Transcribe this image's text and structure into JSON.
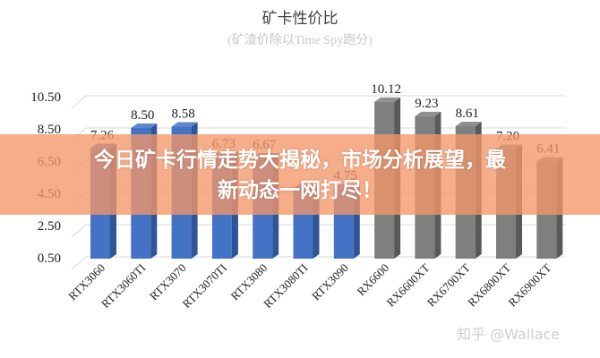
{
  "title": "矿卡性价比",
  "subtitle": "(矿渣价除以Time Spy跑分)",
  "overlay": {
    "headline_line1": "今日矿卡行情走势大揭秘，市场分析展望，最",
    "headline_line2": "新动态一网打尽！",
    "color": "#f4a37c"
  },
  "watermark": "知乎 @Wallace",
  "colors": {
    "nvidia": "#4472c4",
    "amd": "#7f7f7f"
  },
  "chart_data": {
    "type": "bar",
    "title": "矿卡性价比",
    "subtitle": "(矿渣价除以Time Spy跑分)",
    "xlabel": "",
    "ylabel": "",
    "ylim": [
      0.5,
      10.5
    ],
    "yticks": [
      "0.50",
      "2.50",
      "4.50",
      "6.50",
      "8.50",
      "10.50"
    ],
    "grid": true,
    "style": "3d-column",
    "categories": [
      "RTX3060",
      "RTX3060TI",
      "RTX3070",
      "RTX3070TI",
      "RTX3080",
      "RTX3080TI",
      "RTX3090",
      "RX6600",
      "RX6600XT",
      "RX6700XT",
      "RX6800XT",
      "RX6900XT"
    ],
    "values": [
      7.26,
      8.5,
      8.58,
      6.73,
      6.67,
      4.75,
      4.75,
      10.12,
      9.23,
      8.61,
      7.2,
      6.41
    ],
    "labels": [
      "7.26",
      "8.50",
      "8.58",
      "6.73",
      "6.67",
      "",
      "4.75",
      "10.12",
      "9.23",
      "8.61",
      "7.20",
      "6.41"
    ],
    "bar_colors": [
      "#4472c4",
      "#4472c4",
      "#4472c4",
      "#4472c4",
      "#4472c4",
      "#4472c4",
      "#4472c4",
      "#7f7f7f",
      "#7f7f7f",
      "#7f7f7f",
      "#7f7f7f",
      "#7f7f7f"
    ]
  }
}
